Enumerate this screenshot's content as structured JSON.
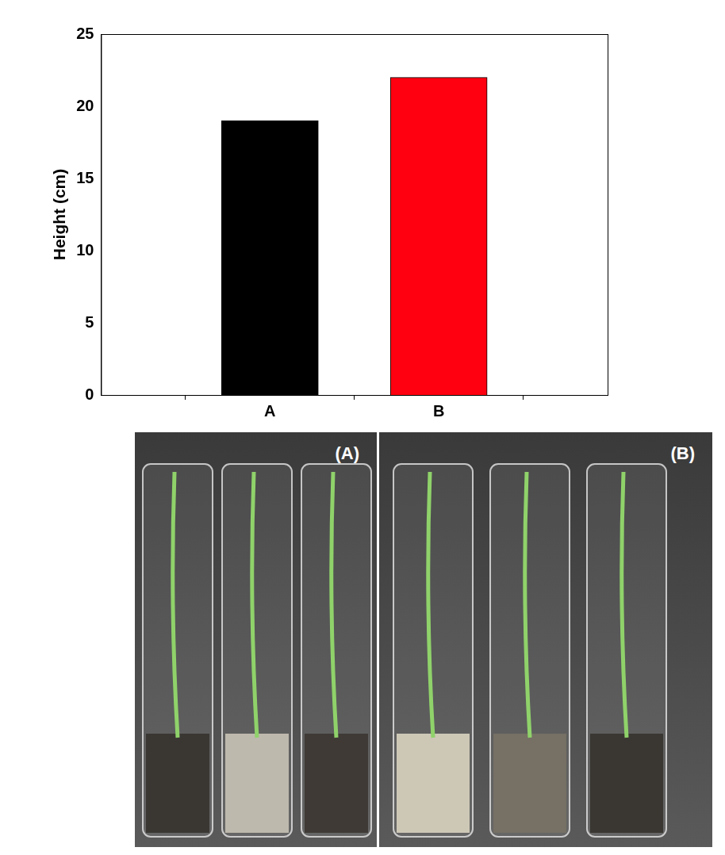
{
  "chart_data": {
    "type": "bar",
    "y_label": "Height (cm)",
    "categories": [
      "A",
      "B"
    ],
    "values": [
      19,
      22
    ],
    "colors": [
      "#000000",
      "#ff0010"
    ],
    "ylim": [
      0,
      25
    ],
    "yticks": [
      0,
      5,
      10,
      15,
      20,
      25
    ],
    "grid": false
  },
  "photo": {
    "panel_labels": [
      "(A)",
      "(B)"
    ]
  }
}
